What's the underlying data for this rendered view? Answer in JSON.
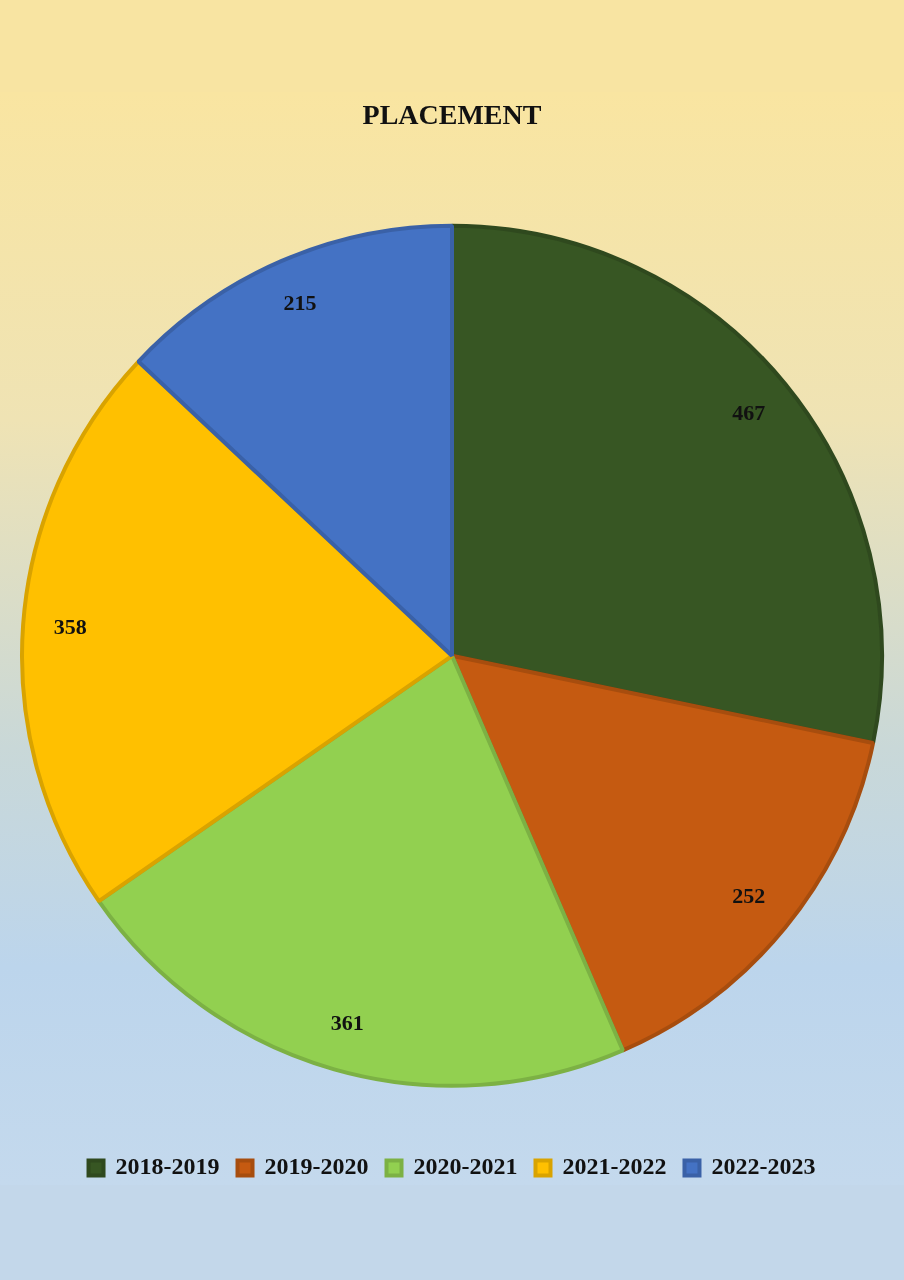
{
  "chart_data": {
    "type": "pie",
    "title": "PLACEMENT",
    "categories": [
      "2018-2019",
      "2019-2020",
      "2020-2021",
      "2021-2022",
      "2022-2023"
    ],
    "values": [
      467,
      252,
      361,
      358,
      215
    ],
    "colors": [
      "#375623",
      "#c55a11",
      "#92d050",
      "#ffc000",
      "#4472c4"
    ],
    "data_labels": true,
    "legend": "bottom"
  }
}
